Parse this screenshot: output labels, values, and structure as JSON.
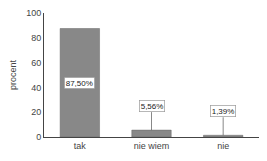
{
  "chart_data": {
    "type": "bar",
    "categories": [
      "tak",
      "nie wiem",
      "nie"
    ],
    "values": [
      87.5,
      5.56,
      1.39
    ],
    "value_labels": [
      "87,50%",
      "5,56%",
      "1,39%"
    ],
    "data_labels": true,
    "color": "#888888",
    "ylabel": "procent",
    "ylim": [
      0,
      100
    ],
    "yticks": [
      0,
      20,
      40,
      60,
      80,
      100
    ],
    "grid": false
  }
}
